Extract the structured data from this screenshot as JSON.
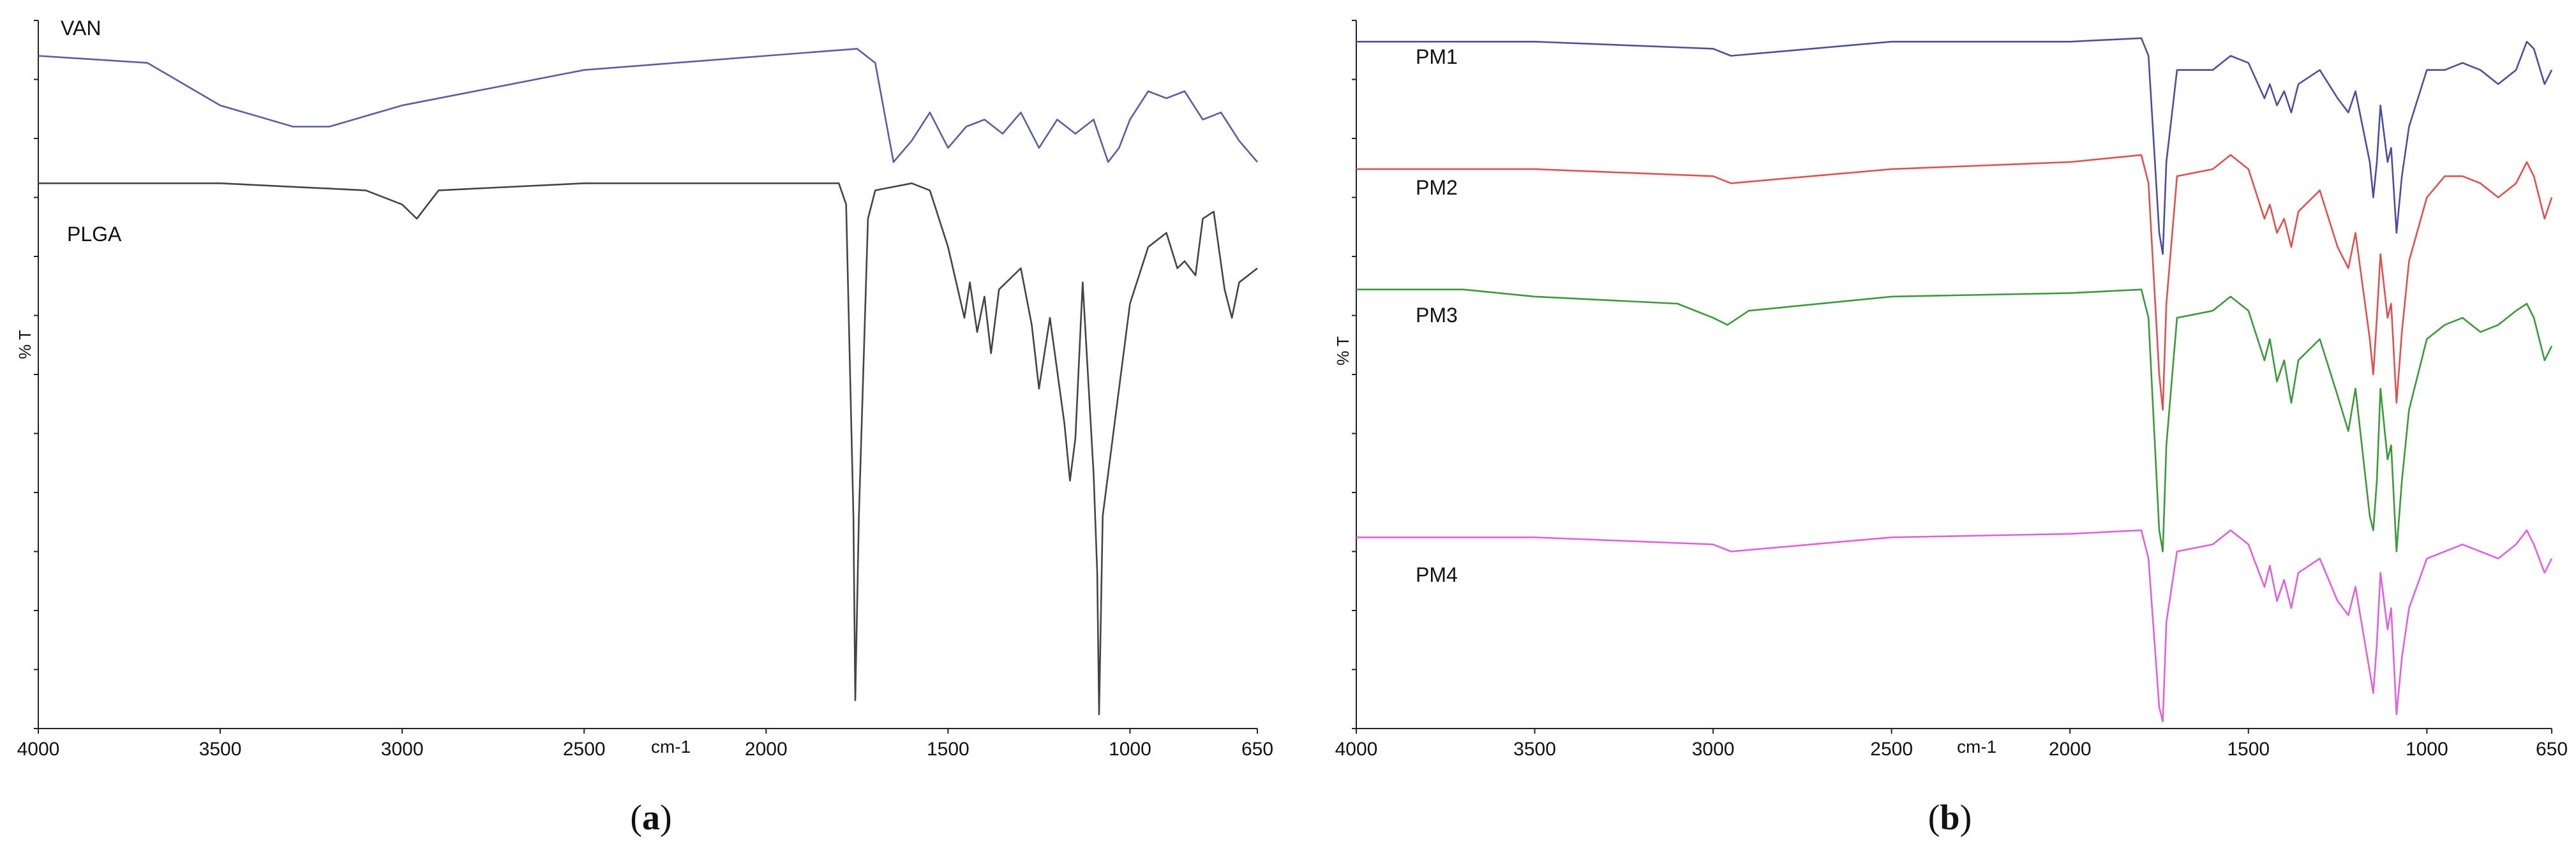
{
  "chart_data": [
    {
      "type": "line",
      "panel_label": "a",
      "xlabel": "cm-1",
      "ylabel": "% T",
      "xlim": [
        4000,
        650
      ],
      "ylim": [
        0,
        100
      ],
      "x_ticks": [
        "4000",
        "3500",
        "3000",
        "2500",
        "2000",
        "1500",
        "1000",
        "650"
      ],
      "series": [
        {
          "name": "VAN",
          "color": "#5b5ba8",
          "points": [
            [
              4000,
              95
            ],
            [
              3700,
              94
            ],
            [
              3500,
              88
            ],
            [
              3300,
              85
            ],
            [
              3200,
              85
            ],
            [
              3000,
              88
            ],
            [
              2500,
              93
            ],
            [
              2000,
              95
            ],
            [
              1750,
              96
            ],
            [
              1700,
              94
            ],
            [
              1650,
              80
            ],
            [
              1600,
              83
            ],
            [
              1550,
              87
            ],
            [
              1500,
              82
            ],
            [
              1450,
              85
            ],
            [
              1400,
              86
            ],
            [
              1350,
              84
            ],
            [
              1300,
              87
            ],
            [
              1250,
              82
            ],
            [
              1200,
              86
            ],
            [
              1150,
              84
            ],
            [
              1100,
              86
            ],
            [
              1060,
              80
            ],
            [
              1030,
              82
            ],
            [
              1000,
              86
            ],
            [
              950,
              90
            ],
            [
              900,
              89
            ],
            [
              850,
              90
            ],
            [
              800,
              86
            ],
            [
              750,
              87
            ],
            [
              700,
              83
            ],
            [
              650,
              80
            ]
          ]
        },
        {
          "name": "PLGA",
          "color": "#444444",
          "points": [
            [
              4000,
              77
            ],
            [
              3700,
              77
            ],
            [
              3500,
              77
            ],
            [
              3100,
              76
            ],
            [
              3000,
              74
            ],
            [
              2960,
              72
            ],
            [
              2900,
              76
            ],
            [
              2500,
              77
            ],
            [
              2000,
              77
            ],
            [
              1800,
              77
            ],
            [
              1780,
              74
            ],
            [
              1760,
              30
            ],
            [
              1755,
              4
            ],
            [
              1745,
              30
            ],
            [
              1720,
              72
            ],
            [
              1700,
              76
            ],
            [
              1600,
              77
            ],
            [
              1550,
              76
            ],
            [
              1500,
              68
            ],
            [
              1455,
              58
            ],
            [
              1440,
              63
            ],
            [
              1420,
              56
            ],
            [
              1400,
              61
            ],
            [
              1382,
              53
            ],
            [
              1360,
              62
            ],
            [
              1300,
              65
            ],
            [
              1270,
              57
            ],
            [
              1250,
              48
            ],
            [
              1220,
              58
            ],
            [
              1180,
              43
            ],
            [
              1165,
              35
            ],
            [
              1150,
              41
            ],
            [
              1130,
              63
            ],
            [
              1100,
              36
            ],
            [
              1090,
              22
            ],
            [
              1085,
              2
            ],
            [
              1075,
              30
            ],
            [
              1050,
              40
            ],
            [
              1000,
              60
            ],
            [
              950,
              68
            ],
            [
              900,
              70
            ],
            [
              870,
              65
            ],
            [
              850,
              66
            ],
            [
              820,
              64
            ],
            [
              800,
              72
            ],
            [
              770,
              73
            ],
            [
              740,
              62
            ],
            [
              720,
              58
            ],
            [
              700,
              63
            ],
            [
              650,
              65
            ]
          ]
        }
      ]
    },
    {
      "type": "line",
      "panel_label": "b",
      "xlabel": "cm-1",
      "ylabel": "% T",
      "xlim": [
        4000,
        650
      ],
      "ylim": [
        0,
        100
      ],
      "x_ticks": [
        "4000",
        "3500",
        "3000",
        "2500",
        "2000",
        "1500",
        "1000",
        "650"
      ],
      "series": [
        {
          "name": "PM1",
          "color": "#4d4d9e",
          "points": [
            [
              4000,
              97
            ],
            [
              3500,
              97
            ],
            [
              3000,
              96
            ],
            [
              2950,
              95
            ],
            [
              2500,
              97
            ],
            [
              2000,
              97
            ],
            [
              1800,
              97.5
            ],
            [
              1780,
              95
            ],
            [
              1750,
              70
            ],
            [
              1740,
              67
            ],
            [
              1730,
              80
            ],
            [
              1700,
              93
            ],
            [
              1600,
              93
            ],
            [
              1550,
              95
            ],
            [
              1500,
              94
            ],
            [
              1455,
              89
            ],
            [
              1440,
              91
            ],
            [
              1420,
              88
            ],
            [
              1400,
              90
            ],
            [
              1380,
              87
            ],
            [
              1360,
              91
            ],
            [
              1300,
              93
            ],
            [
              1250,
              89
            ],
            [
              1220,
              87
            ],
            [
              1200,
              90
            ],
            [
              1160,
              80
            ],
            [
              1150,
              75
            ],
            [
              1140,
              80
            ],
            [
              1130,
              88
            ],
            [
              1110,
              80
            ],
            [
              1100,
              82
            ],
            [
              1085,
              70
            ],
            [
              1070,
              78
            ],
            [
              1050,
              85
            ],
            [
              1000,
              93
            ],
            [
              950,
              93
            ],
            [
              900,
              94
            ],
            [
              850,
              93
            ],
            [
              800,
              91
            ],
            [
              750,
              93
            ],
            [
              720,
              97
            ],
            [
              700,
              96
            ],
            [
              670,
              91
            ],
            [
              650,
              93
            ]
          ]
        },
        {
          "name": "PM2",
          "color": "#e05050",
          "points": [
            [
              4000,
              79
            ],
            [
              3500,
              79
            ],
            [
              3000,
              78
            ],
            [
              2950,
              77
            ],
            [
              2500,
              79
            ],
            [
              2000,
              80
            ],
            [
              1800,
              81
            ],
            [
              1780,
              77
            ],
            [
              1750,
              50
            ],
            [
              1740,
              45
            ],
            [
              1730,
              60
            ],
            [
              1700,
              78
            ],
            [
              1600,
              79
            ],
            [
              1550,
              81
            ],
            [
              1500,
              79
            ],
            [
              1455,
              72
            ],
            [
              1440,
              74
            ],
            [
              1420,
              70
            ],
            [
              1400,
              72
            ],
            [
              1380,
              68
            ],
            [
              1360,
              73
            ],
            [
              1300,
              76
            ],
            [
              1250,
              68
            ],
            [
              1220,
              65
            ],
            [
              1200,
              70
            ],
            [
              1160,
              55
            ],
            [
              1150,
              50
            ],
            [
              1140,
              58
            ],
            [
              1130,
              67
            ],
            [
              1110,
              58
            ],
            [
              1100,
              60
            ],
            [
              1085,
              46
            ],
            [
              1070,
              56
            ],
            [
              1050,
              66
            ],
            [
              1000,
              75
            ],
            [
              950,
              78
            ],
            [
              900,
              78
            ],
            [
              850,
              77
            ],
            [
              800,
              75
            ],
            [
              750,
              77
            ],
            [
              720,
              80
            ],
            [
              700,
              78
            ],
            [
              670,
              72
            ],
            [
              650,
              75
            ]
          ]
        },
        {
          "name": "PM3",
          "color": "#3a9a3a",
          "points": [
            [
              4000,
              62
            ],
            [
              3700,
              62
            ],
            [
              3500,
              61
            ],
            [
              3100,
              60
            ],
            [
              3000,
              58
            ],
            [
              2960,
              57
            ],
            [
              2900,
              59
            ],
            [
              2500,
              61
            ],
            [
              2000,
              61.5
            ],
            [
              1800,
              62
            ],
            [
              1780,
              58
            ],
            [
              1750,
              28
            ],
            [
              1740,
              25
            ],
            [
              1730,
              40
            ],
            [
              1700,
              58
            ],
            [
              1600,
              59
            ],
            [
              1550,
              61
            ],
            [
              1500,
              59
            ],
            [
              1455,
              52
            ],
            [
              1440,
              55
            ],
            [
              1420,
              49
            ],
            [
              1400,
              52
            ],
            [
              1380,
              46
            ],
            [
              1360,
              52
            ],
            [
              1300,
              55
            ],
            [
              1250,
              47
            ],
            [
              1220,
              42
            ],
            [
              1200,
              48
            ],
            [
              1160,
              30
            ],
            [
              1150,
              28
            ],
            [
              1140,
              35
            ],
            [
              1130,
              48
            ],
            [
              1110,
              38
            ],
            [
              1100,
              40
            ],
            [
              1085,
              25
            ],
            [
              1070,
              35
            ],
            [
              1050,
              45
            ],
            [
              1000,
              55
            ],
            [
              950,
              57
            ],
            [
              900,
              58
            ],
            [
              850,
              56
            ],
            [
              800,
              57
            ],
            [
              750,
              59
            ],
            [
              720,
              60
            ],
            [
              700,
              58
            ],
            [
              670,
              52
            ],
            [
              650,
              54
            ]
          ]
        },
        {
          "name": "PM4",
          "color": "#e060e0",
          "points": [
            [
              4000,
              27
            ],
            [
              3500,
              27
            ],
            [
              3000,
              26
            ],
            [
              2950,
              25
            ],
            [
              2500,
              27
            ],
            [
              2000,
              27.5
            ],
            [
              1800,
              28
            ],
            [
              1780,
              24
            ],
            [
              1750,
              3
            ],
            [
              1740,
              1
            ],
            [
              1730,
              15
            ],
            [
              1700,
              25
            ],
            [
              1600,
              26
            ],
            [
              1550,
              28
            ],
            [
              1500,
              26
            ],
            [
              1455,
              20
            ],
            [
              1440,
              23
            ],
            [
              1420,
              18
            ],
            [
              1400,
              21
            ],
            [
              1380,
              17
            ],
            [
              1360,
              22
            ],
            [
              1300,
              24
            ],
            [
              1250,
              18
            ],
            [
              1220,
              16
            ],
            [
              1200,
              20
            ],
            [
              1160,
              8
            ],
            [
              1150,
              5
            ],
            [
              1140,
              12
            ],
            [
              1130,
              22
            ],
            [
              1110,
              14
            ],
            [
              1100,
              17
            ],
            [
              1085,
              2
            ],
            [
              1070,
              10
            ],
            [
              1050,
              17
            ],
            [
              1000,
              24
            ],
            [
              950,
              25
            ],
            [
              900,
              26
            ],
            [
              850,
              25
            ],
            [
              800,
              24
            ],
            [
              750,
              26
            ],
            [
              720,
              28
            ],
            [
              700,
              26
            ],
            [
              670,
              22
            ],
            [
              650,
              24
            ]
          ]
        }
      ]
    }
  ]
}
